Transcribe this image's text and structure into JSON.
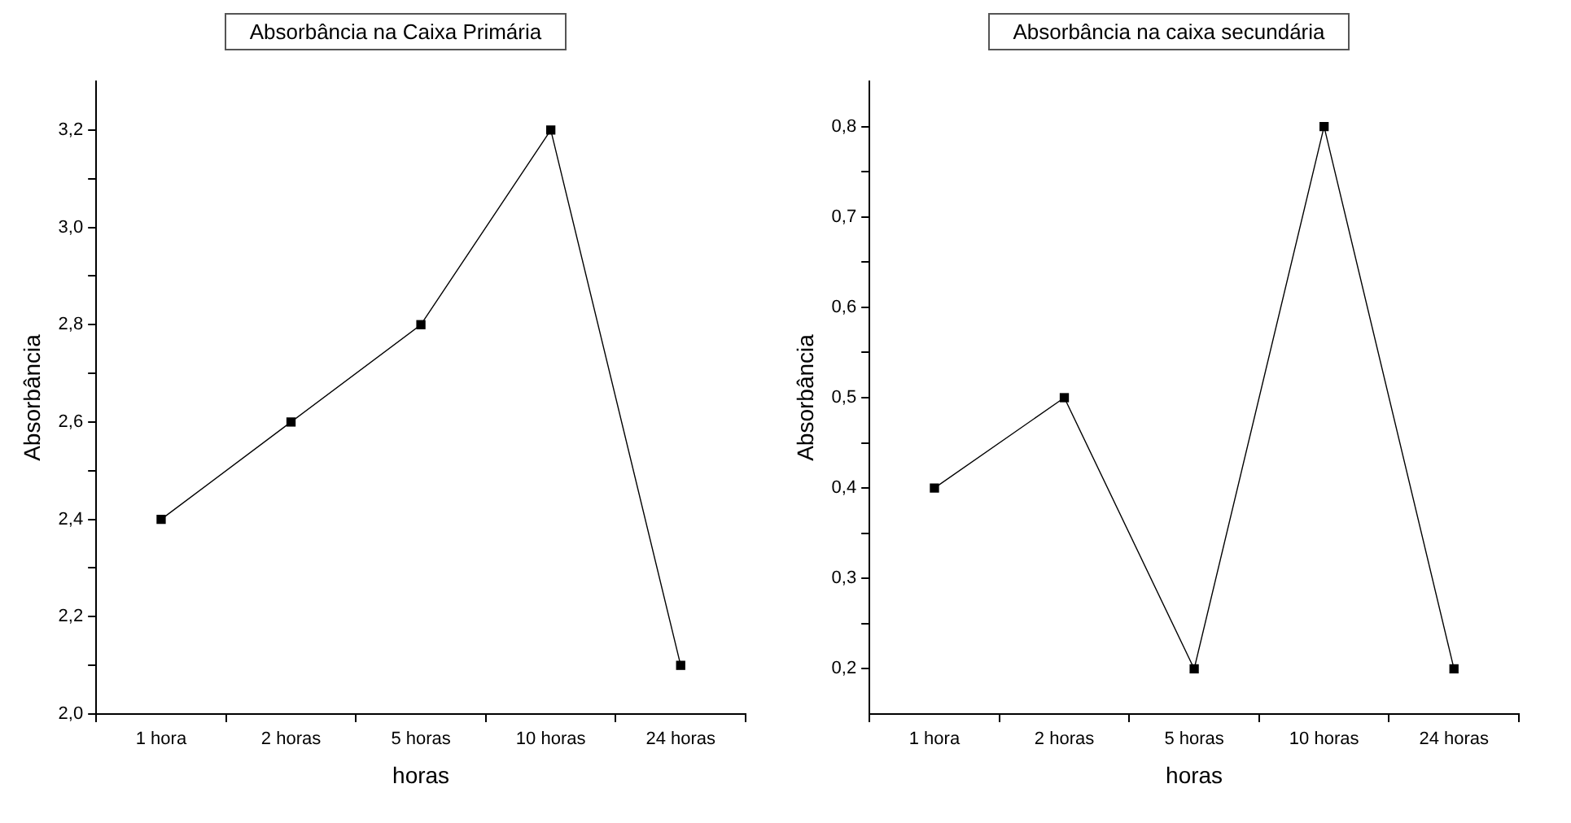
{
  "chart_data": [
    {
      "type": "line",
      "title": "Absorbância na Caixa Primária",
      "xlabel": "horas",
      "ylabel": "Absorbância",
      "categories": [
        "1 hora",
        "2 horas",
        "5 horas",
        "10 horas",
        "24 horas"
      ],
      "series": [
        {
          "color": "#000000",
          "values": [
            2.4,
            2.6,
            2.8,
            3.2,
            2.1
          ]
        }
      ],
      "ylim": [
        2.0,
        3.3
      ],
      "yticks": [
        {
          "value": 2.0,
          "label": "2,0"
        },
        {
          "value": 2.1,
          "label": null
        },
        {
          "value": 2.2,
          "label": "2,2"
        },
        {
          "value": 2.3,
          "label": null
        },
        {
          "value": 2.4,
          "label": "2,4"
        },
        {
          "value": 2.5,
          "label": null
        },
        {
          "value": 2.6,
          "label": "2,6"
        },
        {
          "value": 2.7,
          "label": null
        },
        {
          "value": 2.8,
          "label": "2,8"
        },
        {
          "value": 2.9,
          "label": null
        },
        {
          "value": 3.0,
          "label": "3,0"
        },
        {
          "value": 3.1,
          "label": null
        },
        {
          "value": 3.2,
          "label": "3,2"
        }
      ],
      "grid": false,
      "legend": false,
      "marker": "square",
      "line_style": "solid"
    },
    {
      "type": "line",
      "title": "Absorbância na caixa secundária",
      "xlabel": "horas",
      "ylabel": "Absorbância",
      "categories": [
        "1 hora",
        "2 horas",
        "5 horas",
        "10 horas",
        "24 horas"
      ],
      "series": [
        {
          "color": "#000000",
          "values": [
            0.4,
            0.5,
            0.2,
            0.8,
            0.2
          ]
        }
      ],
      "ylim": [
        0.15,
        0.85
      ],
      "yticks": [
        {
          "value": 0.2,
          "label": "0,2"
        },
        {
          "value": 0.25,
          "label": null
        },
        {
          "value": 0.3,
          "label": "0,3"
        },
        {
          "value": 0.35,
          "label": null
        },
        {
          "value": 0.4,
          "label": "0,4"
        },
        {
          "value": 0.45,
          "label": null
        },
        {
          "value": 0.5,
          "label": "0,5"
        },
        {
          "value": 0.55,
          "label": null
        },
        {
          "value": 0.6,
          "label": "0,6"
        },
        {
          "value": 0.65,
          "label": null
        },
        {
          "value": 0.7,
          "label": "0,7"
        },
        {
          "value": 0.75,
          "label": null
        },
        {
          "value": 0.8,
          "label": "0,8"
        }
      ],
      "grid": false,
      "legend": false,
      "marker": "square",
      "line_style": "solid"
    }
  ]
}
